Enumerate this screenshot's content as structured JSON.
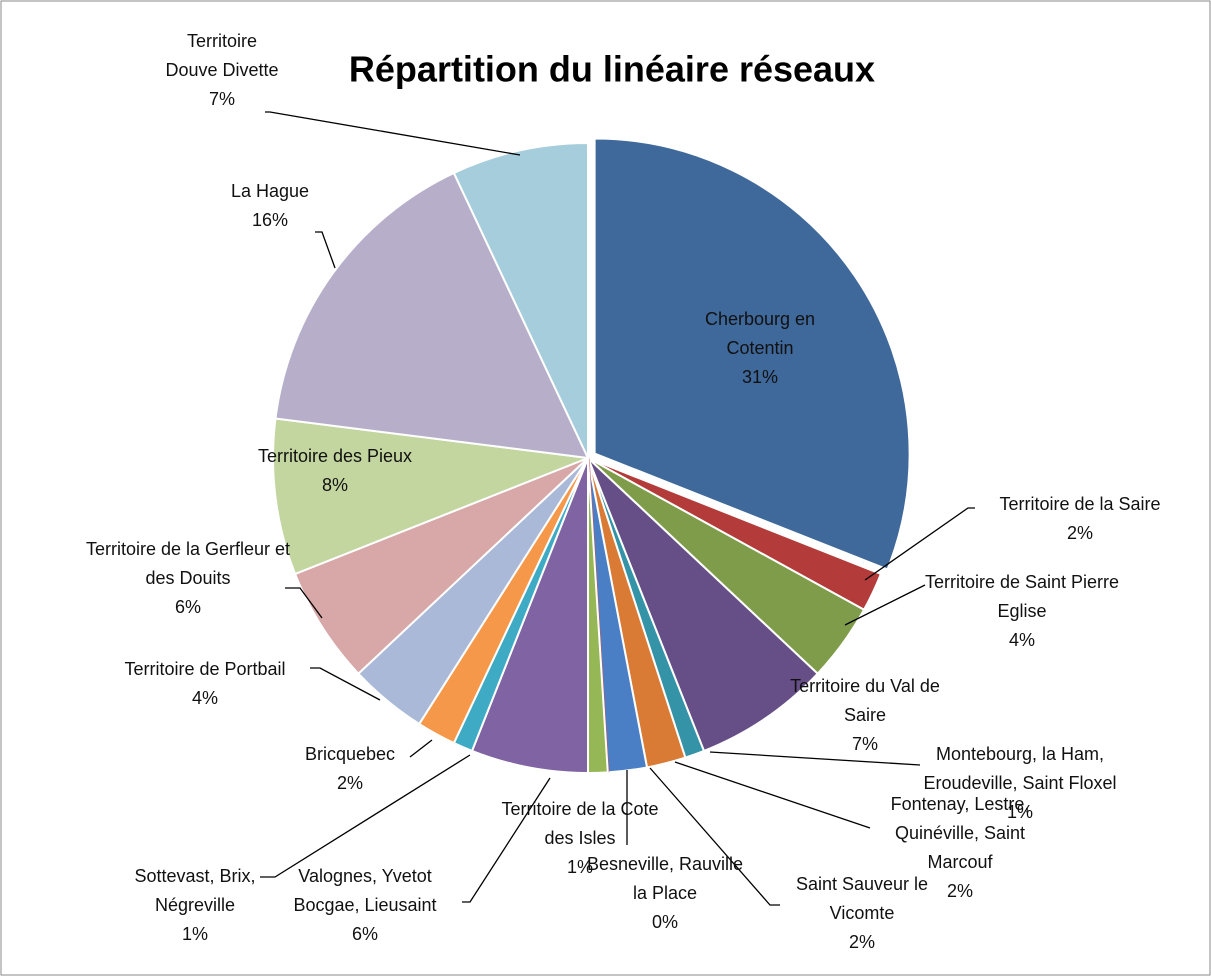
{
  "chart_data": {
    "type": "pie",
    "title": "Répartition du linéaire réseaux",
    "categories": [
      "Cherbourg en Cotentin",
      "Territoire de la Saire",
      "Territoire de Saint Pierre Eglise",
      "Territoire du Val de Saire",
      "Montebourg, la Ham, Eroudeville, Saint Floxel",
      "Fontenay, Lestre, Quinéville, Saint Marcouf",
      "Saint Sauveur le Vicomte",
      "Besneville, Rauville la Place",
      "Territoire de la Cote des Isles",
      "Valognes, Yvetot Bocgae, Lieusaint",
      "Sottevast, Brix, Négreville",
      "Bricquebec",
      "Territoire de Portbail",
      "Territoire de la Gerfleur et des Douits",
      "Territoire des Pieux",
      "La Hague",
      "Territoire Douve Divette"
    ],
    "values": [
      31,
      2,
      4,
      7,
      1,
      2,
      2,
      0,
      1,
      6,
      1,
      2,
      4,
      6,
      8,
      16,
      7
    ],
    "value_labels": [
      "31%",
      "2%",
      "4%",
      "7%",
      "1%",
      "2%",
      "2%",
      "0%",
      "1%",
      "6%",
      "1%",
      "2%",
      "4%",
      "6%",
      "8%",
      "16%",
      "7%"
    ],
    "colors": [
      "#3f689b",
      "#b33c3a",
      "#7e9c49",
      "#664f87",
      "#3493a6",
      "#d97a35",
      "#4a7fc6",
      "#c9504d",
      "#95b755",
      "#7f63a2",
      "#3faac4",
      "#f6984a",
      "#a9b9d7",
      "#d8a7a7",
      "#c3d6a0",
      "#b7aec9",
      "#a5cddc"
    ]
  }
}
